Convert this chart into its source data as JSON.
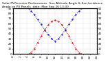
{
  "title": "Solar PV/Inverter Performance  Sun Altitude Angle & Sun Incidence Angle on PV Panels  date: Mon Sep 26 13:30",
  "title_fontsize": 3.2,
  "bg_color": "#ffffff",
  "grid_color": "#aaaaaa",
  "xlim": [
    0,
    24
  ],
  "ylim_left": [
    0,
    90
  ],
  "ylim_right": [
    0,
    90
  ],
  "yticks_left": [
    0,
    10,
    20,
    30,
    40,
    50,
    60,
    70,
    80,
    90
  ],
  "ytick_labels_right": [
    "0",
    "10",
    "20",
    "30",
    "40",
    "50",
    "60",
    "70",
    "80",
    "90"
  ],
  "sun_altitude_x": [
    4.5,
    5,
    6,
    7,
    8,
    9,
    10,
    11,
    12,
    13,
    14,
    15,
    16,
    17,
    18,
    19,
    19.5
  ],
  "sun_altitude_y": [
    0,
    2,
    10,
    22,
    35,
    47,
    57,
    64,
    67,
    64,
    57,
    47,
    35,
    22,
    10,
    2,
    0
  ],
  "incidence_x": [
    4.5,
    5,
    6,
    7,
    8,
    9,
    10,
    11,
    12,
    13,
    14,
    15,
    16,
    17,
    18,
    19,
    19.5
  ],
  "incidence_y": [
    90,
    85,
    78,
    68,
    58,
    48,
    38,
    30,
    25,
    30,
    38,
    48,
    58,
    68,
    78,
    85,
    90
  ],
  "sun_alt_color": "#dd0000",
  "incidence_color": "#0000cc",
  "marker_size": 1.2,
  "xtick_positions": [
    0,
    2,
    4,
    6,
    8,
    10,
    12,
    14,
    16,
    18,
    20,
    22,
    24
  ],
  "xtick_labels": [
    "0",
    "2",
    "4",
    "6",
    "8",
    "10",
    "12",
    "14",
    "16",
    "18",
    "20",
    "22",
    "24"
  ],
  "tick_fontsize": 3.0
}
